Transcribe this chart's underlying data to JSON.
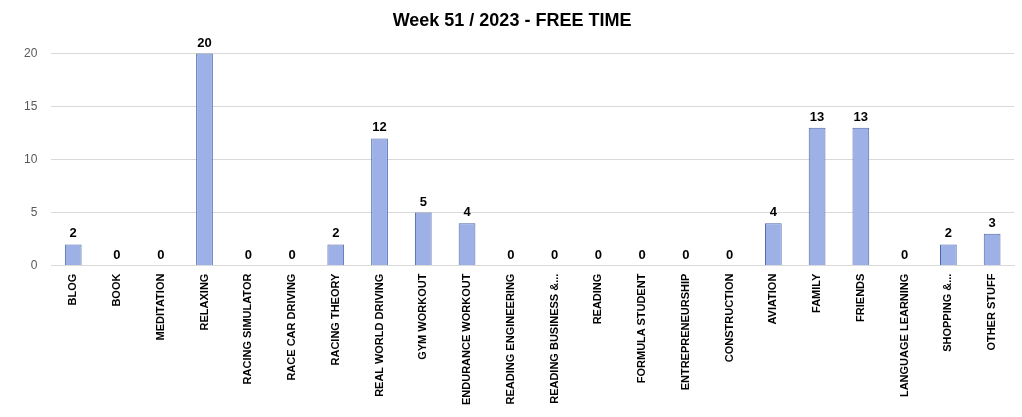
{
  "chart_data": {
    "type": "bar",
    "title": "Week 51 / 2023 - FREE TIME",
    "categories": [
      "BLOG",
      "BOOK",
      "MEDITATION",
      "RELAXING",
      "RACING SIMULATOR",
      "RACE CAR DRIVING",
      "RACING THEORY",
      "REAL WORLD DRIVING",
      "GYM WORKOUT",
      "ENDURANCE WORKOUT",
      "READING ENGINEERING",
      "READING BUSINESS &...",
      "READING",
      "FORMULA STUDENT",
      "ENTREPRENEURSHIP",
      "CONSTRUCTION",
      "AVIATION",
      "FAMILY",
      "FRIENDS",
      "LANGUAGE LEARNING",
      "SHOPPING &...",
      "OTHER STUFF"
    ],
    "values": [
      2,
      0,
      0,
      20,
      0,
      0,
      2,
      12,
      5,
      4,
      0,
      0,
      0,
      0,
      0,
      0,
      4,
      13,
      13,
      0,
      2,
      3
    ],
    "color": "#9eb1e6",
    "ylim": [
      0,
      20
    ],
    "yticks": [
      0,
      5,
      10,
      15,
      20
    ],
    "grid": "y",
    "data_labels": true,
    "legend": false
  }
}
